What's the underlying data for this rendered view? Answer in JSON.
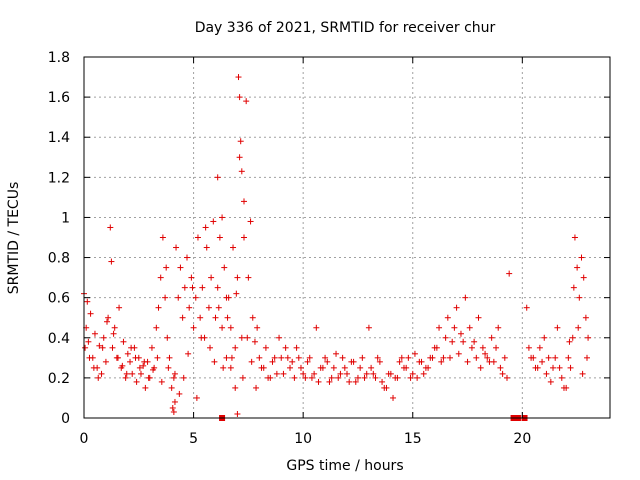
{
  "chart_data": {
    "type": "scatter",
    "title": "Day 336 of 2021, SRMTID for receiver chur",
    "xlabel": "GPS time / hours",
    "ylabel": "SRMTID / TECUs",
    "xlim": [
      0,
      24
    ],
    "ylim": [
      0,
      1.8
    ],
    "x_ticks": [
      0,
      5,
      10,
      15,
      20
    ],
    "x_tick_labels": [
      "0",
      "5",
      "10",
      "15",
      "20"
    ],
    "y_ticks": [
      0,
      0.2,
      0.4,
      0.6,
      0.8,
      1,
      1.2,
      1.4,
      1.6,
      1.8
    ],
    "y_tick_labels": [
      "0",
      "0.2",
      "0.4",
      "0.6",
      "0.8",
      "1",
      "1.2",
      "1.4",
      "1.6",
      "1.8"
    ],
    "grid": true,
    "marker": "plus",
    "color": "#e00000",
    "series": [
      {
        "name": "SRMTID",
        "x": [
          0.0,
          0.1,
          0.15,
          0.2,
          0.3,
          0.4,
          0.5,
          0.6,
          0.7,
          0.8,
          0.9,
          1.0,
          1.1,
          1.2,
          1.25,
          1.3,
          1.4,
          1.5,
          1.6,
          1.7,
          1.8,
          1.9,
          2.0,
          2.1,
          2.2,
          2.3,
          2.4,
          2.5,
          2.6,
          2.7,
          2.8,
          2.9,
          3.0,
          3.1,
          3.2,
          3.3,
          3.4,
          3.5,
          3.6,
          3.7,
          3.75,
          3.8,
          3.9,
          4.0,
          4.05,
          4.1,
          4.2,
          4.3,
          4.4,
          4.5,
          4.6,
          4.7,
          4.8,
          4.9,
          5.0,
          5.1,
          5.2,
          5.3,
          5.4,
          5.5,
          5.6,
          5.7,
          5.8,
          5.9,
          6.0,
          6.1,
          6.2,
          6.3,
          6.4,
          6.5,
          6.6,
          6.7,
          6.8,
          6.9,
          7.0,
          7.05,
          7.1,
          7.15,
          7.2,
          7.3,
          7.4,
          7.5,
          7.6,
          7.7,
          7.8,
          7.9,
          8.0,
          8.2,
          8.4,
          8.6,
          8.8,
          9.0,
          9.2,
          9.4,
          9.6,
          9.8,
          10.0,
          10.2,
          10.4,
          10.6,
          10.8,
          11.0,
          11.2,
          11.4,
          11.6,
          11.8,
          12.0,
          12.2,
          12.4,
          12.6,
          12.8,
          13.0,
          13.2,
          13.4,
          13.6,
          13.8,
          14.0,
          14.2,
          14.4,
          14.6,
          14.8,
          15.0,
          15.2,
          15.4,
          15.6,
          15.8,
          16.0,
          16.2,
          16.4,
          16.6,
          16.8,
          17.0,
          17.2,
          17.4,
          17.6,
          17.8,
          18.0,
          18.2,
          18.4,
          18.6,
          18.7,
          18.8,
          19.0,
          19.2,
          19.4,
          20.2,
          20.4,
          20.6,
          20.8,
          21.0,
          21.2,
          21.4,
          21.6,
          21.8,
          22.0,
          22.1,
          22.2,
          22.3,
          22.4,
          22.5,
          22.6,
          22.7,
          22.8,
          22.9,
          23.0,
          0.05,
          0.25,
          0.45,
          0.65,
          0.85,
          1.05,
          1.35,
          1.55,
          1.75,
          1.95,
          2.15,
          2.35,
          2.55,
          2.75,
          2.95,
          3.15,
          3.35,
          3.55,
          3.85,
          4.15,
          4.35,
          4.55,
          4.75,
          4.95,
          5.15,
          5.35,
          5.55,
          5.75,
          5.95,
          6.15,
          6.35,
          6.55,
          6.75,
          6.95,
          7.25,
          7.45,
          7.65,
          7.85,
          8.1,
          8.3,
          8.5,
          8.7,
          8.9,
          9.1,
          9.3,
          9.5,
          9.7,
          9.9,
          10.1,
          10.3,
          10.5,
          10.7,
          10.9,
          11.1,
          11.3,
          11.5,
          11.7,
          11.9,
          12.1,
          12.3,
          12.5,
          12.7,
          12.9,
          13.1,
          13.3,
          13.5,
          13.7,
          13.9,
          14.1,
          14.3,
          14.5,
          14.7,
          14.9,
          15.1,
          15.3,
          15.5,
          15.7,
          15.9,
          16.1,
          16.3,
          16.5,
          16.7,
          16.9,
          17.1,
          17.3,
          17.5,
          17.7,
          17.9,
          18.1,
          18.3,
          18.5,
          18.9,
          19.1,
          19.3,
          20.3,
          20.5,
          20.7,
          20.9,
          21.1,
          21.3,
          21.5,
          21.7,
          21.9,
          22.15,
          22.35,
          22.55,
          22.75,
          22.95,
          4.1,
          4.15,
          6.1,
          6.3,
          6.5,
          6.7,
          6.9,
          7.0,
          7.1,
          7.2,
          7.3
        ],
        "y": [
          0.62,
          0.45,
          0.58,
          0.38,
          0.52,
          0.3,
          0.42,
          0.25,
          0.36,
          0.22,
          0.4,
          0.28,
          0.5,
          0.95,
          0.78,
          0.35,
          0.45,
          0.3,
          0.55,
          0.25,
          0.38,
          0.2,
          0.32,
          0.28,
          0.22,
          0.35,
          0.18,
          0.3,
          0.22,
          0.26,
          0.15,
          0.28,
          0.2,
          0.35,
          0.25,
          0.45,
          0.55,
          0.7,
          0.9,
          0.6,
          0.75,
          0.4,
          0.3,
          0.15,
          0.05,
          0.2,
          0.85,
          0.6,
          0.75,
          0.5,
          0.65,
          0.8,
          0.55,
          0.7,
          0.45,
          0.6,
          0.9,
          0.5,
          0.65,
          0.4,
          0.85,
          0.55,
          0.7,
          0.98,
          0.5,
          0.65,
          0.9,
          0.45,
          0.75,
          0.3,
          0.6,
          0.45,
          0.85,
          0.35,
          0.7,
          1.7,
          1.6,
          1.38,
          1.23,
          0.9,
          1.58,
          0.7,
          0.98,
          0.5,
          0.38,
          0.45,
          0.3,
          0.25,
          0.2,
          0.28,
          0.22,
          0.3,
          0.35,
          0.25,
          0.2,
          0.3,
          0.22,
          0.28,
          0.2,
          0.45,
          0.25,
          0.3,
          0.18,
          0.25,
          0.2,
          0.3,
          0.22,
          0.28,
          0.18,
          0.25,
          0.2,
          0.45,
          0.22,
          0.3,
          0.18,
          0.15,
          0.22,
          0.2,
          0.28,
          0.25,
          0.3,
          0.22,
          0.2,
          0.28,
          0.25,
          0.3,
          0.35,
          0.45,
          0.3,
          0.5,
          0.38,
          0.55,
          0.42,
          0.6,
          0.45,
          0.38,
          0.5,
          0.35,
          0.3,
          0.4,
          0.28,
          0.35,
          0.25,
          0.3,
          0.72,
          0.55,
          0.3,
          0.25,
          0.35,
          0.4,
          0.3,
          0.25,
          0.45,
          0.2,
          0.15,
          0.3,
          0.25,
          0.4,
          0.9,
          0.75,
          0.6,
          0.8,
          0.7,
          0.5,
          0.4,
          0.35,
          0.3,
          0.25,
          0.2,
          0.35,
          0.48,
          0.42,
          0.3,
          0.26,
          0.22,
          0.35,
          0.3,
          0.25,
          0.28,
          0.2,
          0.24,
          0.3,
          0.18,
          0.25,
          0.22,
          0.12,
          0.2,
          0.32,
          0.65,
          0.1,
          0.4,
          0.95,
          0.35,
          0.28,
          0.55,
          0.25,
          0.5,
          0.3,
          0.62,
          0.2,
          0.4,
          0.28,
          0.15,
          0.25,
          0.35,
          0.2,
          0.3,
          0.4,
          0.22,
          0.3,
          0.28,
          0.35,
          0.25,
          0.2,
          0.3,
          0.22,
          0.18,
          0.25,
          0.28,
          0.2,
          0.32,
          0.22,
          0.25,
          0.18,
          0.28,
          0.2,
          0.3,
          0.22,
          0.25,
          0.2,
          0.28,
          0.15,
          0.22,
          0.1,
          0.2,
          0.3,
          0.25,
          0.2,
          0.32,
          0.28,
          0.22,
          0.25,
          0.3,
          0.35,
          0.28,
          0.4,
          0.3,
          0.45,
          0.32,
          0.38,
          0.28,
          0.35,
          0.3,
          0.25,
          0.32,
          0.28,
          0.45,
          0.22,
          0.2,
          0.35,
          0.3,
          0.25,
          0.28,
          0.22,
          0.18,
          0.3,
          0.25,
          0.15,
          0.38,
          0.65,
          0.45,
          0.22,
          0.3,
          0.03,
          0.08,
          1.2,
          1.0,
          0.6,
          0.25,
          0.15,
          0.02,
          1.3,
          0.4,
          1.08
        ]
      }
    ],
    "zero_value_epochs": {
      "x": [
        6.3,
        19.6,
        19.8,
        20.1
      ],
      "y": [
        0,
        0,
        0,
        0
      ]
    }
  }
}
